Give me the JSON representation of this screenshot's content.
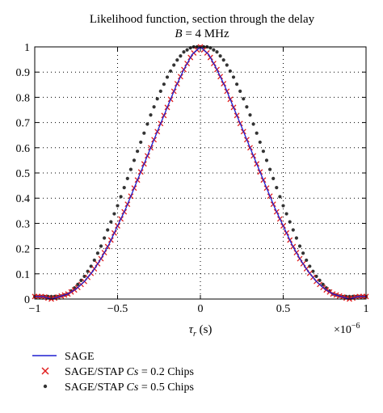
{
  "chart_data": {
    "type": "line",
    "title": "Likelihood function, section through the delay",
    "subtitle": {
      "variable": "B",
      "rest": " = 4 MHz"
    },
    "xlabel": {
      "symbol": "τ",
      "sub": "r",
      "unit": " (s)"
    },
    "x_multiplier": {
      "base": "×10",
      "exp": "−6"
    },
    "ylabel": "",
    "xlim": [
      -1,
      1
    ],
    "ylim": [
      0,
      1
    ],
    "x_ticks": [
      -1,
      -0.5,
      0,
      0.5,
      1
    ],
    "x_tick_labels": [
      "−1",
      "−0.5",
      "0",
      "0.5",
      "1"
    ],
    "y_ticks": [
      0,
      0.1,
      0.2,
      0.3,
      0.4,
      0.5,
      0.6,
      0.7,
      0.8,
      0.9,
      1
    ],
    "y_tick_labels": [
      "0",
      "0.1",
      "0.2",
      "0.3",
      "0.4",
      "0.5",
      "0.6",
      "0.7",
      "0.8",
      "0.9",
      "1"
    ],
    "grid": true,
    "legend_position": "below-left",
    "x": [
      -1,
      -0.95,
      -0.9,
      -0.85,
      -0.8,
      -0.75,
      -0.7,
      -0.65,
      -0.6,
      -0.55,
      -0.5,
      -0.45,
      -0.4,
      -0.35,
      -0.3,
      -0.25,
      -0.2,
      -0.15,
      -0.1,
      -0.05,
      0,
      0.05,
      0.1,
      0.15,
      0.2,
      0.25,
      0.3,
      0.35,
      0.4,
      0.45,
      0.5,
      0.55,
      0.6,
      0.65,
      0.7,
      0.75,
      0.8,
      0.85,
      0.9,
      0.95,
      1
    ],
    "series": [
      {
        "name": "SAGE",
        "legend_text": "SAGE",
        "marker": "line",
        "color": "#1f1fd0",
        "values": [
          0.01,
          0.01,
          0.0,
          0.01,
          0.02,
          0.04,
          0.07,
          0.11,
          0.16,
          0.22,
          0.29,
          0.36,
          0.44,
          0.52,
          0.6,
          0.68,
          0.76,
          0.84,
          0.91,
          0.97,
          1.0,
          0.97,
          0.91,
          0.84,
          0.76,
          0.68,
          0.6,
          0.52,
          0.44,
          0.36,
          0.29,
          0.22,
          0.16,
          0.11,
          0.07,
          0.04,
          0.02,
          0.01,
          0.0,
          0.01,
          0.01
        ]
      },
      {
        "name": "SAGE/STAP Cs = 0.2 Chips",
        "legend_text": {
          "prefix": "SAGE/STAP ",
          "var": "Cs",
          "suffix": " = 0.2 Chips"
        },
        "marker": "x",
        "color": "#e01e1e",
        "values": [
          0.01,
          0.01,
          0.0,
          0.01,
          0.02,
          0.04,
          0.07,
          0.11,
          0.16,
          0.22,
          0.29,
          0.36,
          0.44,
          0.52,
          0.6,
          0.68,
          0.76,
          0.84,
          0.91,
          0.97,
          1.0,
          0.97,
          0.91,
          0.84,
          0.76,
          0.68,
          0.6,
          0.52,
          0.44,
          0.36,
          0.29,
          0.22,
          0.16,
          0.11,
          0.07,
          0.04,
          0.02,
          0.01,
          0.0,
          0.01,
          0.01
        ]
      },
      {
        "name": "SAGE/STAP Cs = 0.5 Chips",
        "legend_text": {
          "prefix": "SAGE/STAP ",
          "var": "Cs",
          "suffix": " = 0.5 Chips"
        },
        "marker": "dot",
        "color": "#333333",
        "values": [
          0.01,
          0.01,
          0.01,
          0.01,
          0.02,
          0.05,
          0.09,
          0.14,
          0.21,
          0.29,
          0.37,
          0.46,
          0.55,
          0.64,
          0.73,
          0.81,
          0.88,
          0.94,
          0.98,
          1.0,
          1.0,
          1.0,
          0.98,
          0.94,
          0.88,
          0.81,
          0.73,
          0.64,
          0.55,
          0.46,
          0.37,
          0.29,
          0.21,
          0.14,
          0.09,
          0.05,
          0.02,
          0.01,
          0.01,
          0.01,
          0.01
        ]
      }
    ]
  }
}
